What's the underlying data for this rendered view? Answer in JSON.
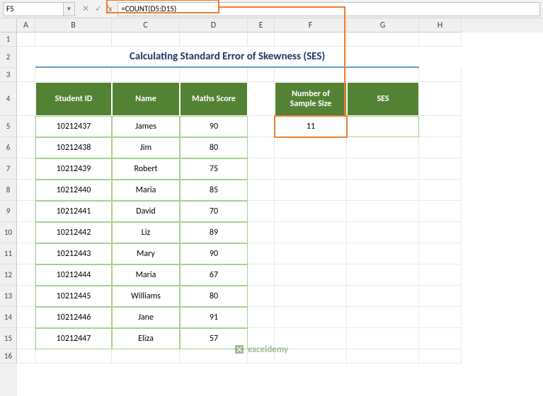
{
  "name_box": "F5",
  "formula": "=COUNT(D5:D15)",
  "title": "Calculating Standard Error of Skewness (SES)",
  "columns": {
    "A": 26,
    "B": 108,
    "C": 96,
    "D": 96,
    "E": 38,
    "F": 102,
    "G": 102,
    "H": 60
  },
  "rows": {
    "1": 20,
    "2": 30,
    "3": 20,
    "4": 48,
    "5": 30,
    "6": 30,
    "7": 30,
    "8": 30,
    "9": 30,
    "10": 30,
    "11": 30,
    "12": 30,
    "13": 30,
    "14": 30,
    "15": 30,
    "16": 20
  },
  "main_headers": [
    "Student ID",
    "Name",
    "Maths Score"
  ],
  "side_headers": [
    "Number of Sample Size",
    "SES"
  ],
  "students": [
    {
      "id": "10212437",
      "name": "James",
      "score": "90"
    },
    {
      "id": "10212438",
      "name": "Jim",
      "score": "80"
    },
    {
      "id": "10212439",
      "name": "Robert",
      "score": "75"
    },
    {
      "id": "10212440",
      "name": "Maria",
      "score": "85"
    },
    {
      "id": "10212441",
      "name": "David",
      "score": "70"
    },
    {
      "id": "10212442",
      "name": "Liz",
      "score": "89"
    },
    {
      "id": "10212443",
      "name": "Mary",
      "score": "90"
    },
    {
      "id": "10212444",
      "name": "Maria",
      "score": "67"
    },
    {
      "id": "10212445",
      "name": "Williams",
      "score": "80"
    },
    {
      "id": "10212446",
      "name": "Jane",
      "score": "91"
    },
    {
      "id": "10212447",
      "name": "Eliza",
      "score": "57"
    }
  ],
  "sample_size": "11",
  "ses_value": "",
  "watermark": "exceldemy",
  "watermark_sub": ".com",
  "colors": {
    "header_bg": "#548235",
    "header_fg": "#ffffff",
    "data_border": "#a9d08e",
    "title_color": "#203864",
    "title_underline": "#5b9bd5",
    "highlight": "#ed7d31"
  }
}
